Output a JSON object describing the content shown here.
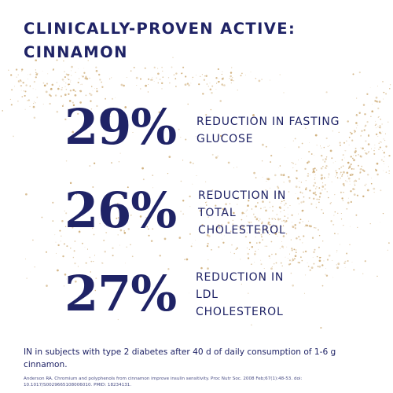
{
  "headline": {
    "line1": "CLINICALLY-PROVEN ACTIVE:",
    "line2": "CINNAMON"
  },
  "stats": [
    {
      "value": "29%",
      "lines": [
        "REDUCTION IN FASTING",
        "GLUCOSE"
      ]
    },
    {
      "value": "26%",
      "lines": [
        "REDUCTION IN",
        "TOTAL",
        "CHOLESTEROL"
      ]
    },
    {
      "value": "27%",
      "lines": [
        "REDUCTION IN",
        "LDL",
        "CHOLESTEROL"
      ]
    }
  ],
  "note": "IN in subjects with type 2 diabetes after 40 d of daily consumption of 1-6 g cinnamon.",
  "reference": "Anderson RA. Chromium and polyphenols from cinnamon improve insulin sensitivity. Proc Nutr Soc. 2008 Feb;67(1):48-53. doi: 10.1017/S0029665108006010. PMID: 18234131.",
  "colors": {
    "text": "#1f2366",
    "speckle": "#c9a46a",
    "background": "#ffffff"
  }
}
